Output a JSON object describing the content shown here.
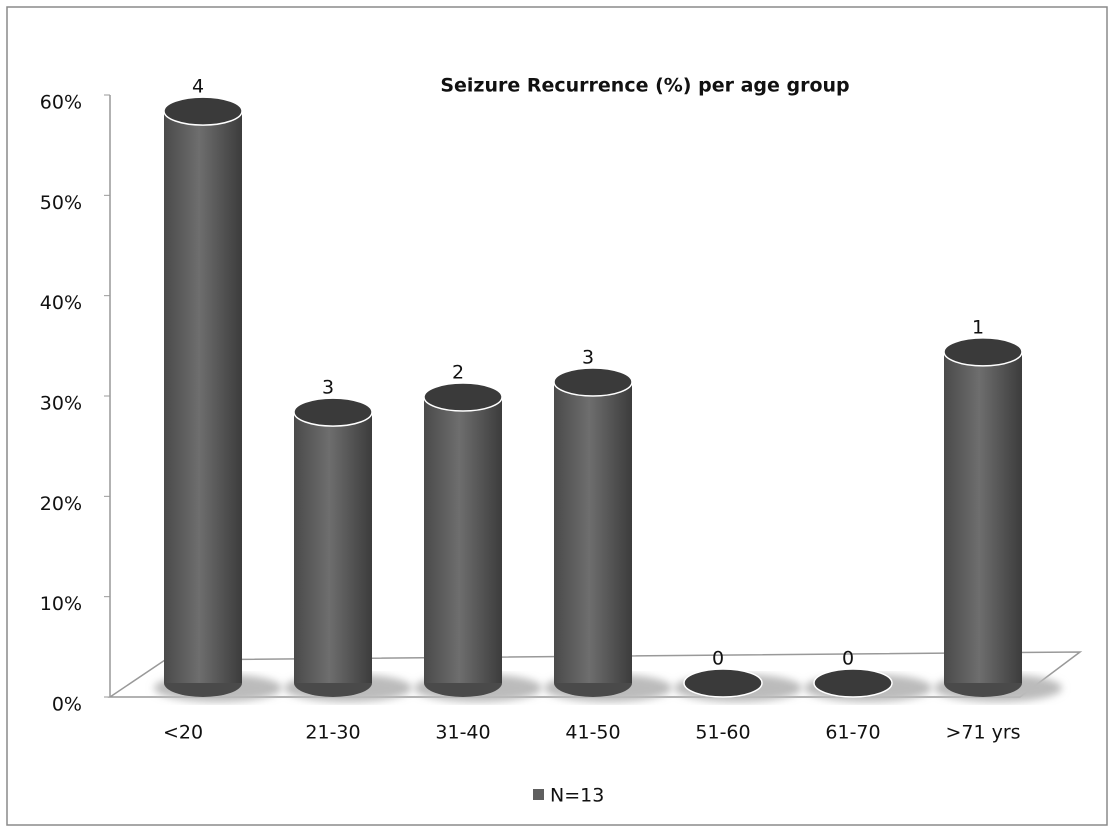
{
  "chart_data": {
    "type": "cylinder",
    "title": "Seizure Recurrence (%) per age group",
    "categories": [
      "<20",
      "21-30",
      "31-40",
      "41-50",
      "51-60",
      "61-70",
      ">71 yrs"
    ],
    "series": [
      {
        "name": "N=13",
        "color": "#5f5f5f",
        "values": [
          57,
          27,
          28.5,
          30,
          0,
          0,
          33
        ],
        "counts": [
          4,
          3,
          2,
          3,
          0,
          0,
          1
        ]
      }
    ],
    "ylim": [
      0,
      60
    ],
    "yticks": [
      {
        "value": 0,
        "label": "0%"
      },
      {
        "value": 10,
        "label": "10%"
      },
      {
        "value": 20,
        "label": "20%"
      },
      {
        "value": 30,
        "label": "30%"
      },
      {
        "value": 40,
        "label": "40%"
      },
      {
        "value": 50,
        "label": "50%"
      },
      {
        "value": 60,
        "label": "60%"
      }
    ],
    "legend": "bottom"
  }
}
